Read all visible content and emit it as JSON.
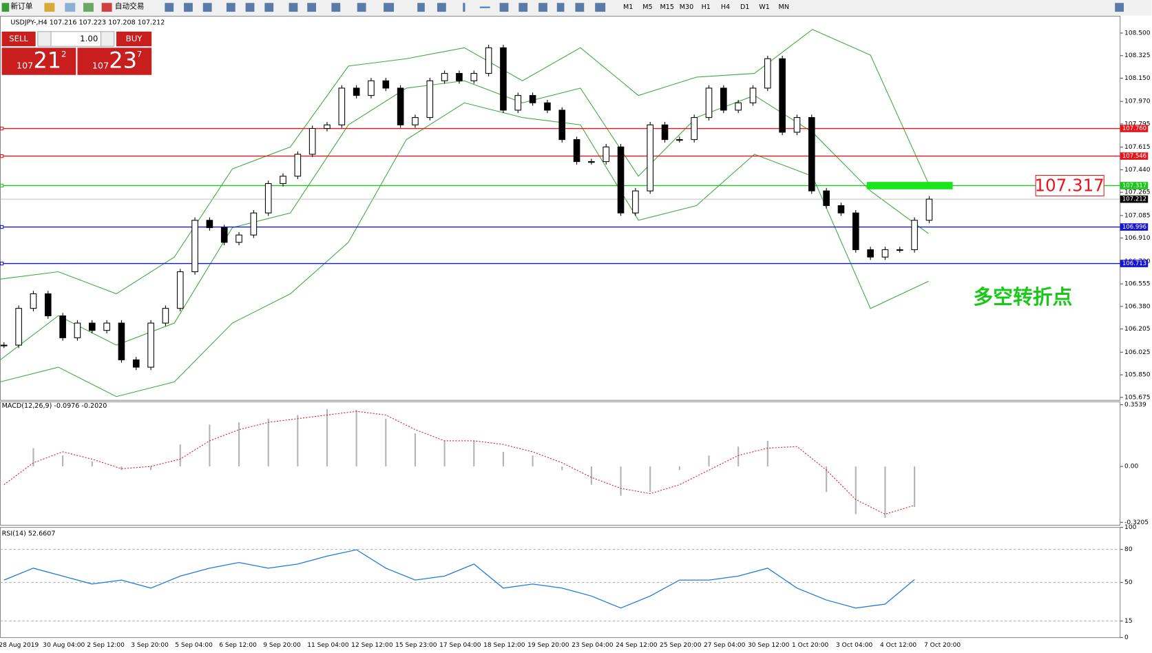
{
  "toolbar": {
    "new_order": "新订单",
    "auto_trade": "自动交易",
    "timeframes": [
      "M1",
      "M5",
      "M15",
      "M30",
      "H1",
      "H4",
      "D1",
      "W1",
      "MN"
    ]
  },
  "trade_panel": {
    "sell": "SELL",
    "buy": "BUY",
    "lots": "1.00",
    "sell_price": [
      "107",
      "21",
      "2"
    ],
    "buy_price": [
      "107",
      "23",
      "7"
    ]
  },
  "annotation": "多空转折点",
  "chart_data": [
    {
      "type": "candlestick",
      "title": "USDJPY-,H4  107.216 107.223 107.208 107.212",
      "ylim": [
        105.652,
        108.631
      ],
      "yticks": [
        {
          "value": 108.5,
          "label": "108.500"
        },
        108.325,
        {
          "value": 108.15,
          "label": "108.150"
        },
        {
          "value": 107.97,
          "label": "107.970"
        },
        107.795,
        107.615,
        {
          "value": 107.44,
          "label": "107.440"
        },
        107.265,
        107.085,
        {
          "value": 106.91,
          "label": "106.910"
        },
        {
          "value": 106.73,
          "label": "106.730"
        },
        106.555,
        {
          "value": 106.38,
          "label": "106.380"
        },
        106.205,
        106.025,
        {
          "value": 105.85,
          "label": "105.850"
        },
        105.675
      ],
      "levels": [
        {
          "value": 107.76,
          "label": "107.760",
          "color": "#e8141c"
        },
        {
          "value": 107.546,
          "label": "107.546",
          "color": "#e8141c"
        },
        {
          "value": 107.317,
          "label": "107.317",
          "color": "#19c819"
        },
        {
          "value": 106.996,
          "label": "106.996",
          "color": "#1414d2"
        },
        {
          "value": 106.713,
          "label": "106.713",
          "color": "#1414d2"
        }
      ],
      "current": {
        "value": 107.212,
        "label": "107.212"
      },
      "close": [
        106.08,
        106.365,
        106.478,
        106.307,
        106.137,
        106.251,
        106.194,
        106.251,
        105.966,
        105.909,
        106.251,
        106.365,
        106.649,
        107.048,
        106.991,
        106.877,
        106.934,
        107.105,
        107.333,
        107.39,
        107.56,
        107.76,
        107.788,
        108.073,
        108.016,
        108.13,
        108.073,
        107.788,
        107.845,
        108.13,
        108.187,
        108.13,
        108.187,
        108.386,
        107.902,
        108.016,
        107.959,
        107.902,
        107.674,
        107.503,
        107.503,
        107.617,
        107.105,
        107.276,
        107.788,
        107.674,
        107.674,
        107.845,
        108.073,
        107.902,
        107.959,
        108.073,
        108.301,
        107.731,
        107.845,
        107.276,
        107.162,
        107.105,
        106.82,
        106.763,
        106.82,
        106.82,
        107.048,
        107.212
      ],
      "bands": {
        "color": "#3caa3c",
        "upper": [
          106.592,
          106.649,
          106.478,
          106.763,
          107.446,
          107.617,
          108.244,
          108.301,
          108.386,
          108.13,
          108.386,
          108.016,
          108.158,
          108.187,
          108.528,
          108.329,
          107.333
        ],
        "middle": [
          105.966,
          106.308,
          106.08,
          106.251,
          106.991,
          107.105,
          107.788,
          108.073,
          108.13,
          107.959,
          108.073,
          107.39,
          107.845,
          108.016,
          107.731,
          107.276,
          106.945
        ],
        "lower": [
          105.795,
          105.909,
          105.681,
          105.795,
          106.251,
          106.478,
          106.877,
          107.674,
          107.959,
          107.845,
          107.788,
          107.048,
          107.162,
          107.56,
          107.39,
          106.364,
          106.575
        ]
      },
      "time_labels": [
        "28 Aug 2019",
        "30 Aug 04:00",
        "2 Sep 12:00",
        "3 Sep 20:00",
        "5 Sep 04:00",
        "6 Sep 12:00",
        "9 Sep 20:00",
        "11 Sep 04:00",
        "12 Sep 12:00",
        "15 Sep 23:00",
        "17 Sep 04:00",
        "18 Sep 12:00",
        "19 Sep 20:00",
        "23 Sep 04:00",
        "24 Sep 12:00",
        "25 Sep 20:00",
        "27 Sep 04:00",
        "30 Sep 12:00",
        "1 Oct 20:00",
        "3 Oct 04:00",
        "4 Oct 12:00",
        "7 Oct 20:00"
      ]
    },
    {
      "type": "macd",
      "title": "MACD(12,26,9) -0.0976 -0.2020",
      "ylim": [
        -0.337,
        0.3707
      ],
      "yticks": [
        0.3539,
        {
          "value": 0,
          "label": "0.00"
        },
        -0.3205
      ],
      "series": [
        {
          "name": "MACD",
          "color": "#b4b4b4",
          "values": [
            0,
            0.105,
            0.063,
            0.029,
            -0.021,
            -0.021,
            0.126,
            0.24,
            0.253,
            0.274,
            0.295,
            0.329,
            0.324,
            0.274,
            0.19,
            0.147,
            0.147,
            0.084,
            0.063,
            -0.021,
            -0.105,
            -0.168,
            -0.147,
            -0.021,
            0.063,
            0.114,
            0.147,
            0,
            -0.147,
            -0.274,
            -0.295,
            -0.232
          ]
        },
        {
          "name": "Signal",
          "color": "#e8141c",
          "values": [
            -0.105,
            0.021,
            0.084,
            0.042,
            -0.013,
            0,
            0.042,
            0.147,
            0.211,
            0.253,
            0.274,
            0.295,
            0.316,
            0.295,
            0.211,
            0.147,
            0.147,
            0.126,
            0.084,
            0.021,
            -0.063,
            -0.126,
            -0.156,
            -0.105,
            -0.021,
            0.063,
            0.105,
            0.114,
            -0.021,
            -0.19,
            -0.274,
            -0.223
          ]
        }
      ]
    },
    {
      "type": "rsi",
      "title": "RSI(14) 52.6607",
      "ylim": [
        0,
        100
      ],
      "yticks": [
        100,
        80,
        50,
        15,
        0
      ],
      "series": [
        {
          "name": "RSI",
          "color": "#1e78dc",
          "values": [
            52.2,
            63,
            55.8,
            48.6,
            52.2,
            44.9,
            55.8,
            63,
            68.1,
            63,
            66.7,
            73.9,
            79.7,
            63,
            52.2,
            55.8,
            66.7,
            44.9,
            48.6,
            44.9,
            37.7,
            26.8,
            37.7,
            52.2,
            52.2,
            55.8,
            63,
            44.9,
            34.1,
            26.8,
            30.4,
            52.66
          ]
        }
      ]
    }
  ]
}
